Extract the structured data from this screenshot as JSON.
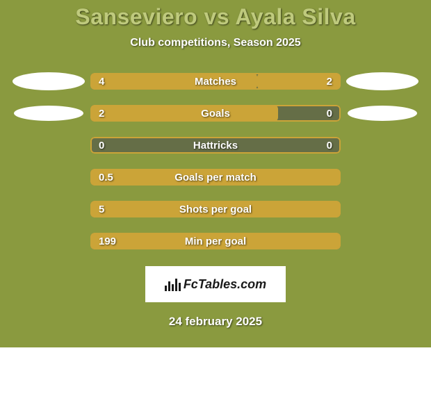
{
  "background_color": "#8a9a3f",
  "text_color": "#ffffff",
  "title": "Sanseviero vs Ayala Silva",
  "title_color": "#bfca7d",
  "title_fontsize": 32,
  "subtitle": "Club competitions, Season 2025",
  "subtitle_fontsize": 16,
  "bar_track_color": "#656e47",
  "bar_fill_color": "#cba438",
  "bar_border_color": "#cba438",
  "value_text_color": "#ffffff",
  "rows": [
    {
      "label": "Matches",
      "left_value": "4",
      "right_value": "2",
      "left_pct": 66.7,
      "right_pct": 33.3,
      "side_shape": "big"
    },
    {
      "label": "Goals",
      "left_value": "2",
      "right_value": "0",
      "left_pct": 75.0,
      "right_pct": 0,
      "side_shape": "small"
    },
    {
      "label": "Hattricks",
      "left_value": "0",
      "right_value": "0",
      "left_pct": 0,
      "right_pct": 0,
      "side_shape": null
    },
    {
      "label": "Goals per match",
      "left_value": "0.5",
      "right_value": "",
      "left_pct": 100,
      "right_pct": 0,
      "side_shape": null
    },
    {
      "label": "Shots per goal",
      "left_value": "5",
      "right_value": "",
      "left_pct": 100,
      "right_pct": 0,
      "side_shape": null
    },
    {
      "label": "Min per goal",
      "left_value": "199",
      "right_value": "",
      "left_pct": 100,
      "right_pct": 0,
      "side_shape": null
    }
  ],
  "logo_text": "FcTables.com",
  "footer_date": "24 february 2025"
}
